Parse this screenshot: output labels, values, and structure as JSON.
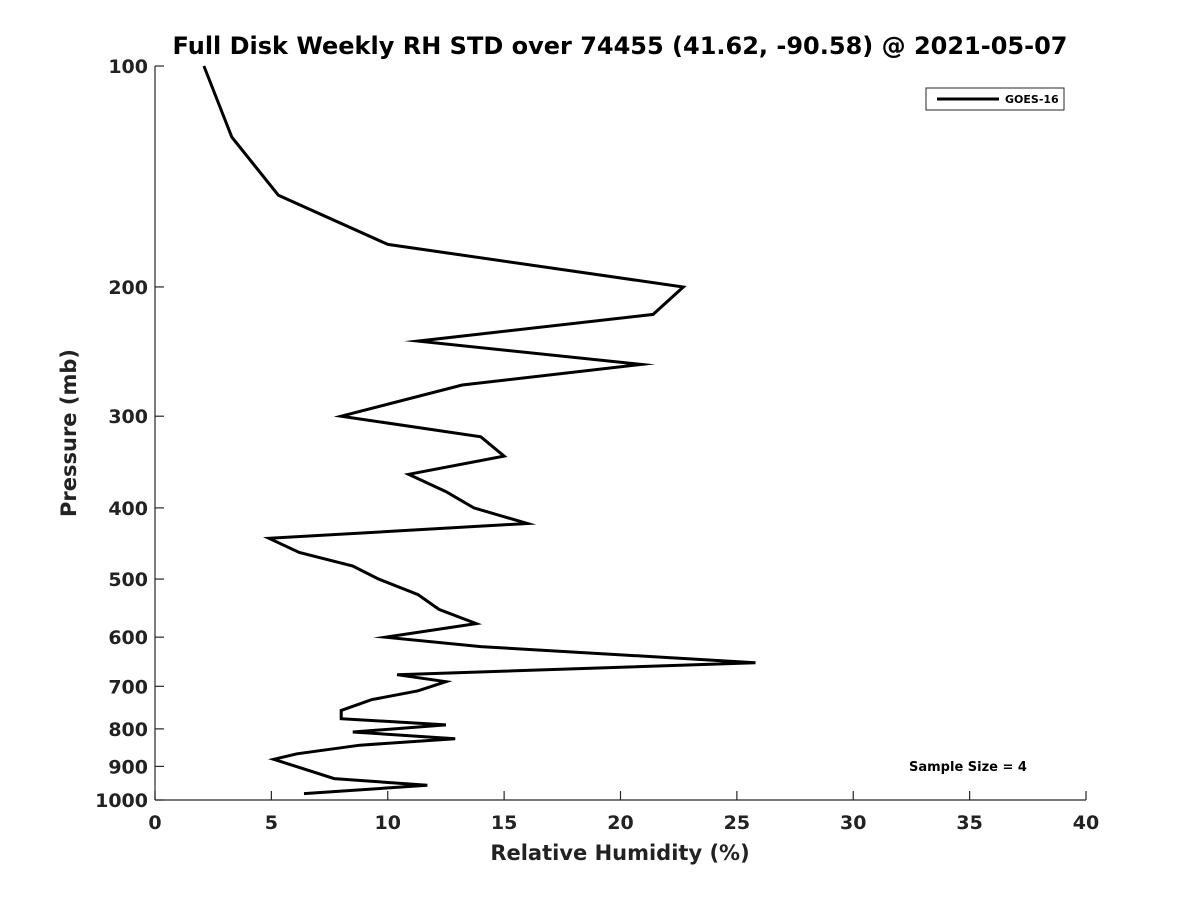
{
  "chart_data": {
    "type": "line",
    "title": "Full Disk Weekly RH STD over 74455 (41.62, -90.58) @ 2021-05-07",
    "xlabel": "Relative Humidity (%)",
    "ylabel": "Pressure (mb)",
    "xlim": [
      0,
      40
    ],
    "ylim": [
      100,
      1000
    ],
    "y_scale": "log",
    "y_reversed": true,
    "grid": false,
    "legend_position": "top-right",
    "x_ticks": [
      "0",
      "5",
      "10",
      "15",
      "20",
      "25",
      "30",
      "35",
      "40"
    ],
    "y_ticks": [
      "100",
      "200",
      "300",
      "400",
      "500",
      "600",
      "700",
      "800",
      "900",
      "1000"
    ],
    "annotation": "Sample Size = 4",
    "series": [
      {
        "name": "GOES-16",
        "color": "#000000",
        "points": [
          [
            2.1,
            100
          ],
          [
            3.3,
            125
          ],
          [
            5.3,
            150
          ],
          [
            10.0,
            175
          ],
          [
            22.7,
            200
          ],
          [
            21.4,
            218
          ],
          [
            11.3,
            237
          ],
          [
            20.9,
            255
          ],
          [
            13.2,
            272
          ],
          [
            8.0,
            300
          ],
          [
            14.0,
            320
          ],
          [
            15.0,
            340
          ],
          [
            10.9,
            360
          ],
          [
            12.5,
            380
          ],
          [
            13.7,
            400
          ],
          [
            16.0,
            420
          ],
          [
            4.9,
            440
          ],
          [
            6.2,
            460
          ],
          [
            8.5,
            480
          ],
          [
            9.6,
            500
          ],
          [
            11.3,
            525
          ],
          [
            12.2,
            550
          ],
          [
            13.8,
            575
          ],
          [
            9.9,
            600
          ],
          [
            14.0,
            618
          ],
          [
            25.8,
            650
          ],
          [
            10.4,
            675
          ],
          [
            12.5,
            690
          ],
          [
            11.3,
            710
          ],
          [
            9.3,
            730
          ],
          [
            8.0,
            755
          ],
          [
            8.0,
            775
          ],
          [
            12.5,
            790
          ],
          [
            8.5,
            808
          ],
          [
            12.9,
            825
          ],
          [
            8.8,
            842
          ],
          [
            6.1,
            865
          ],
          [
            5.1,
            880
          ],
          [
            6.3,
            905
          ],
          [
            7.7,
            935
          ],
          [
            11.7,
            955
          ],
          [
            6.4,
            980
          ]
        ]
      }
    ]
  }
}
